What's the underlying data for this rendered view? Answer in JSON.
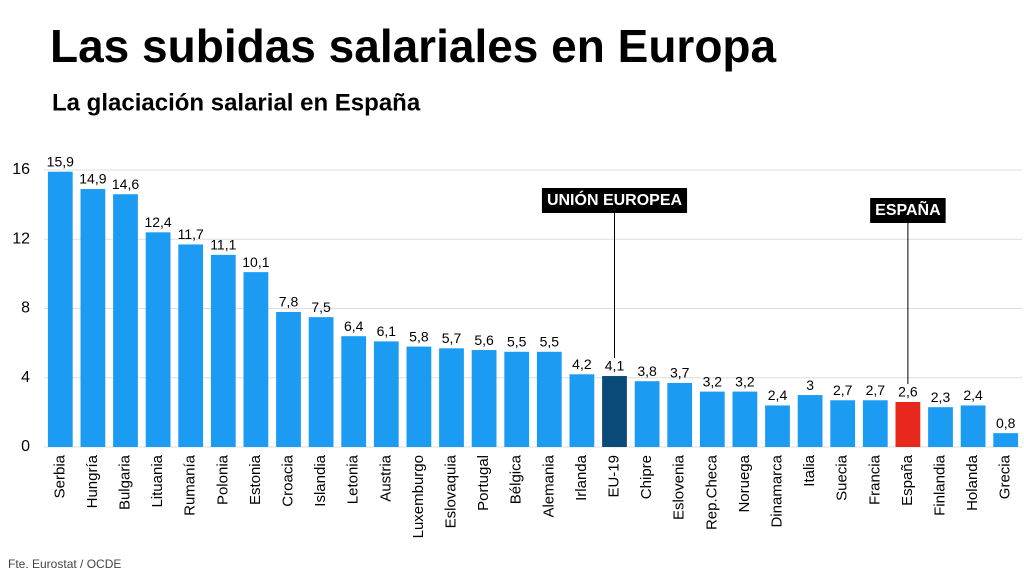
{
  "chart_data": {
    "type": "bar",
    "title": "Las subidas salariales en Europa",
    "subtitle": "La glaciación salarial en España",
    "source": "Fte. Eurostat / OCDE",
    "categories": [
      "Serbia",
      "Hungría",
      "Bulgaria",
      "Lituania",
      "Rumanía",
      "Polonia",
      "Estonia",
      "Croacia",
      "Islandia",
      "Letonia",
      "Austria",
      "Luxemburgo",
      "Eslovaquia",
      "Portugal",
      "Bélgica",
      "Alemania",
      "Irlanda",
      "EU-19",
      "Chipre",
      "Eslovenia",
      "Rep.Checa",
      "Noruega",
      "Dinamarca",
      "Italia",
      "Suecia",
      "Francia",
      "España",
      "Finlandia",
      "Holanda",
      "Grecia"
    ],
    "values": [
      15.9,
      14.9,
      14.6,
      12.4,
      11.7,
      11.1,
      10.1,
      7.8,
      7.5,
      6.4,
      6.1,
      5.8,
      5.7,
      5.6,
      5.5,
      5.5,
      4.2,
      4.1,
      3.8,
      3.7,
      3.2,
      3.2,
      2.4,
      3,
      2.7,
      2.7,
      2.6,
      2.3,
      2.4,
      0.8
    ],
    "value_labels": [
      "15,9",
      "14,9",
      "14,6",
      "12,4",
      "11,7",
      "11,1",
      "10,1",
      "7,8",
      "7,5",
      "6,4",
      "6,1",
      "5,8",
      "5,7",
      "5,6",
      "5,5",
      "5,5",
      "4,2",
      "4,1",
      "3,8",
      "3,7",
      "3,2",
      "3,2",
      "2,4",
      "3",
      "2,7",
      "2,7",
      "2,6",
      "2,3",
      "2,4",
      "0,8"
    ],
    "color": "#1b9cf2",
    "highlight_colors": {
      "EU-19": "#0b4a78",
      "España": "#e8281c"
    },
    "annotations": [
      {
        "text": "UNIÓN EUROPEA",
        "category": "EU-19"
      },
      {
        "text": "ESPAÑA",
        "category": "España"
      }
    ],
    "ylim": [
      0,
      16
    ],
    "yticks": [
      0,
      4,
      8,
      12,
      16
    ],
    "grid": true
  }
}
